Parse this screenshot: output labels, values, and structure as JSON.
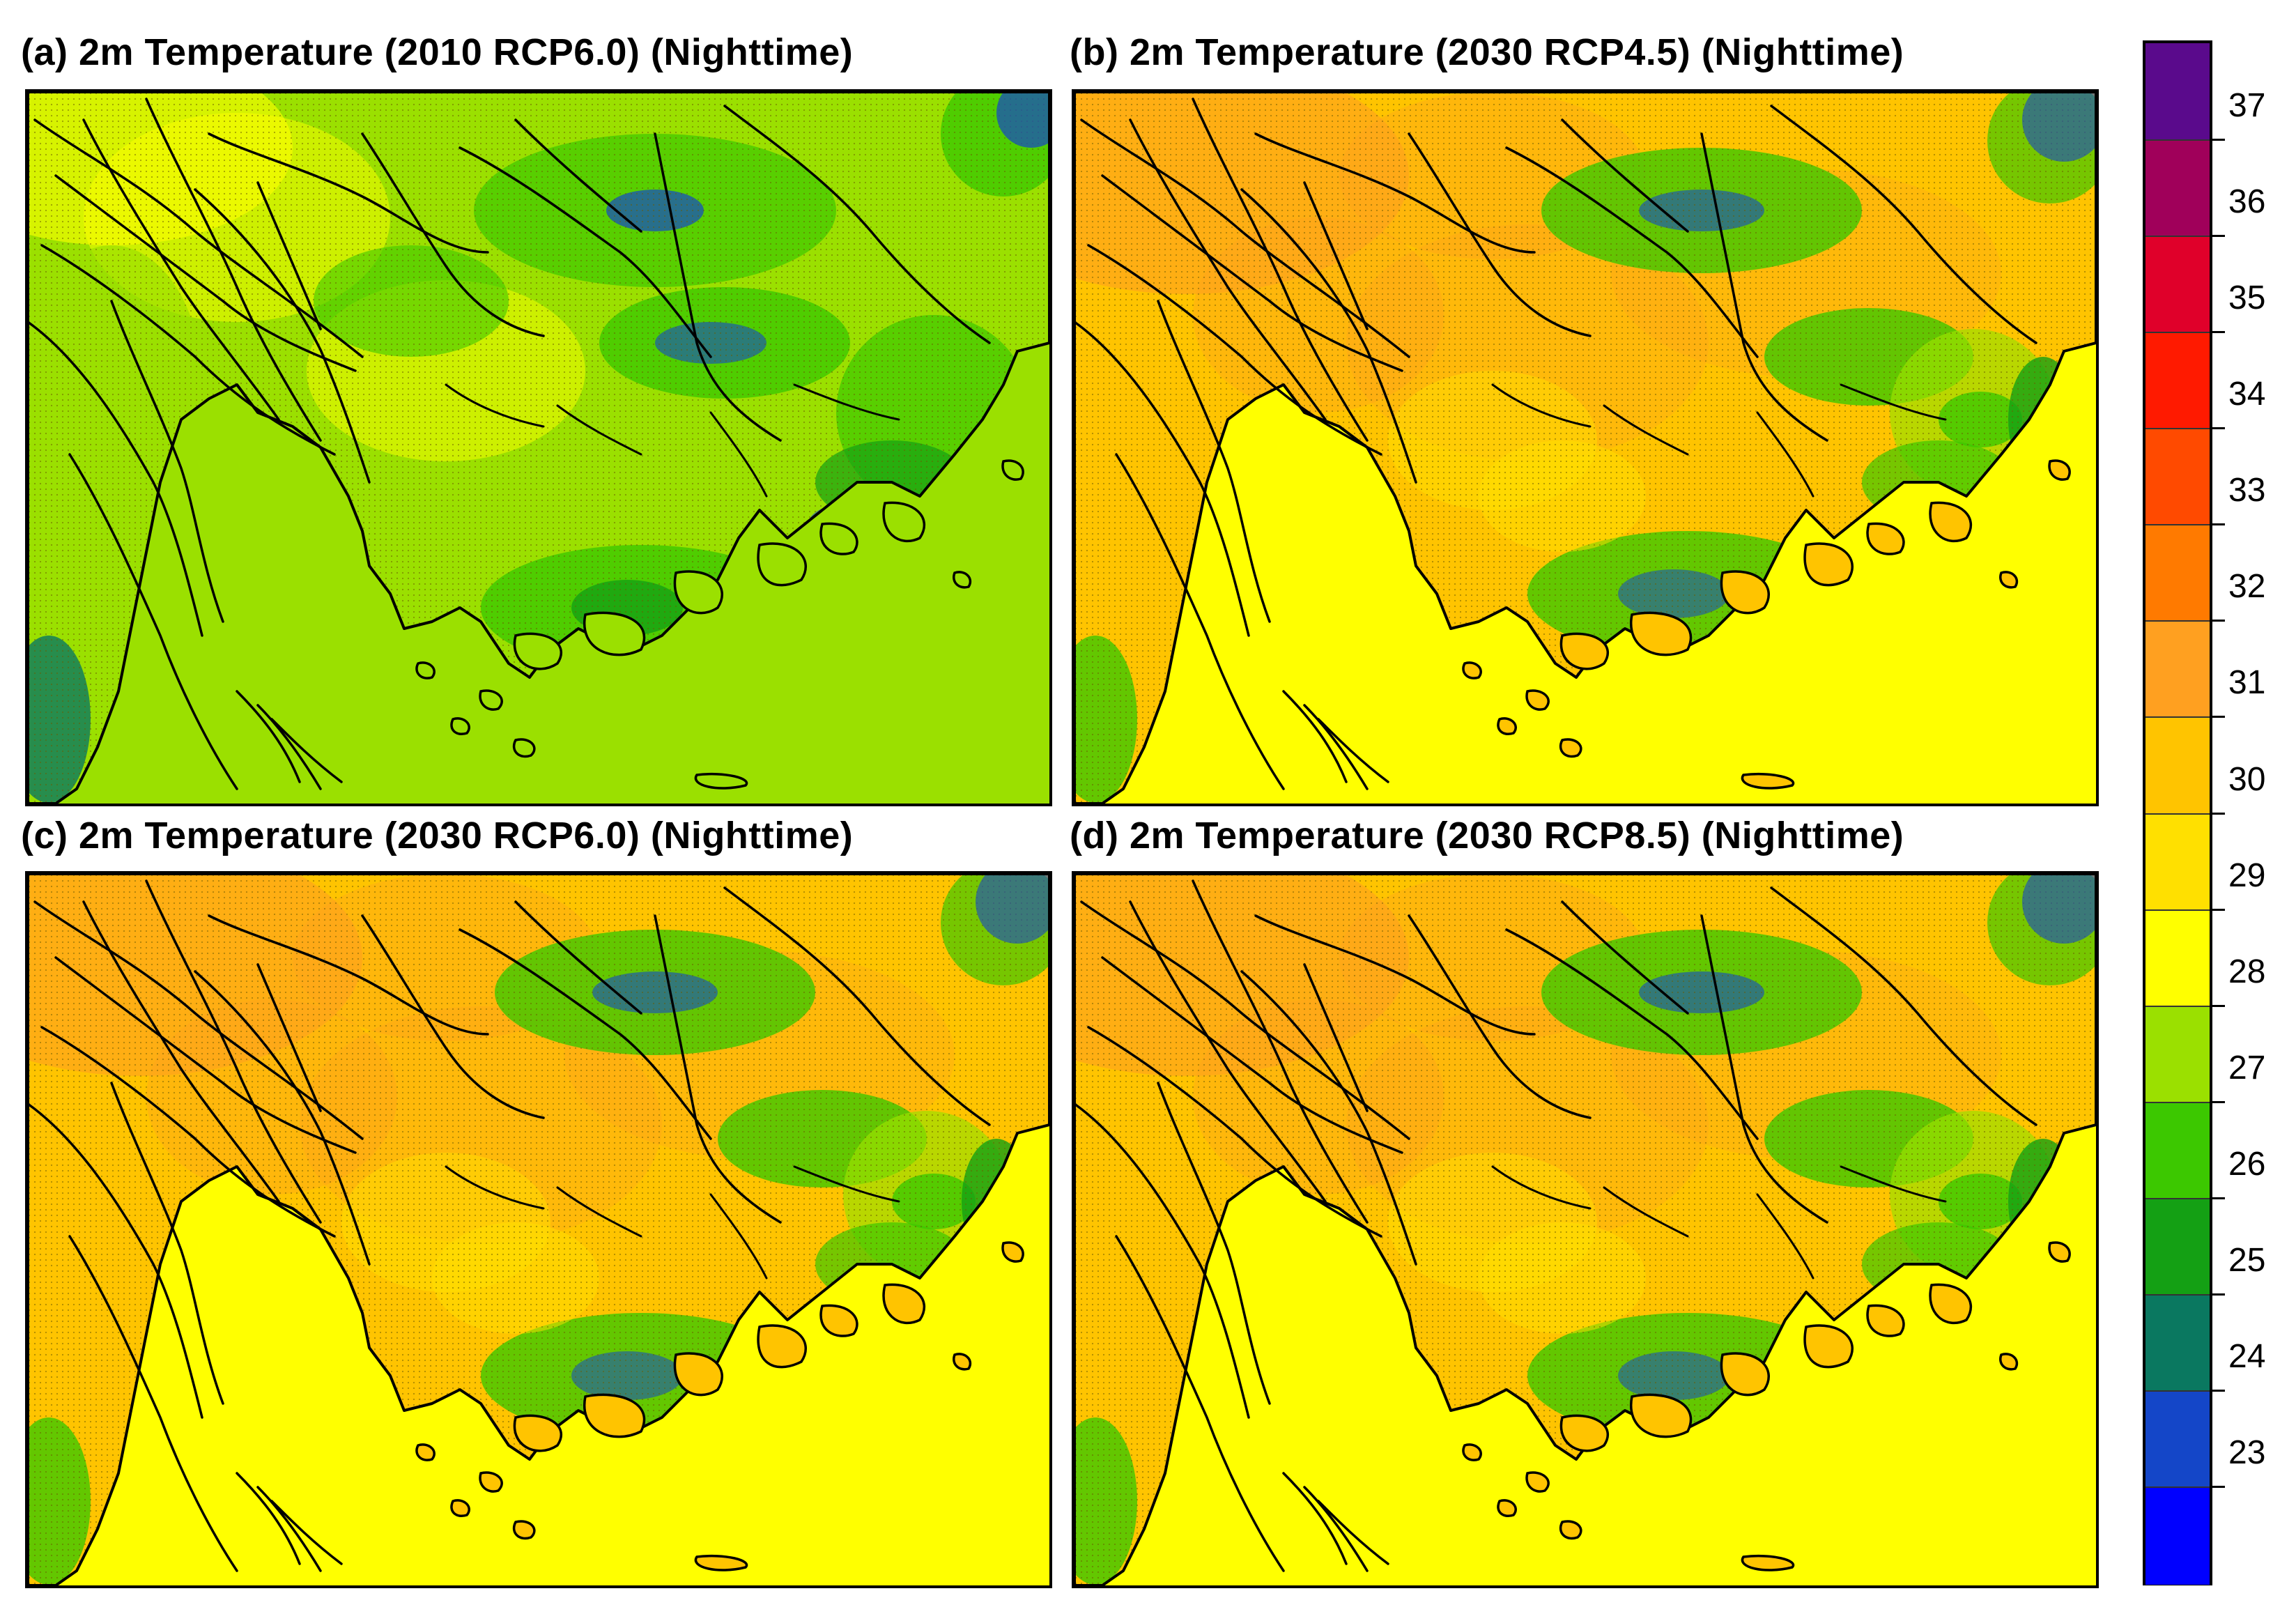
{
  "panels": [
    {
      "id": "a",
      "title": "(a)  2m Temperature (2010 RCP6.0) (Nighttime)"
    },
    {
      "id": "b",
      "title": "(b)  2m Temperature (2030 RCP4.5) (Nighttime)"
    },
    {
      "id": "c",
      "title": "(c)  2m Temperature (2030 RCP6.0) (Nighttime)"
    },
    {
      "id": "d",
      "title": "(d)  2m Temperature (2030 RCP8.5) (Nighttime)"
    }
  ],
  "colorbar": {
    "labels": [
      "37",
      "36",
      "35",
      "34",
      "33",
      "32",
      "31",
      "30",
      "29",
      "28",
      "27",
      "26",
      "25",
      "24",
      "23"
    ],
    "colors_top_to_bottom": [
      "#5a0a8c",
      "#a0005a",
      "#e0002a",
      "#ff1a00",
      "#ff4a00",
      "#ff7a00",
      "#ffa020",
      "#ffc400",
      "#ffe000",
      "#ffff00",
      "#9be000",
      "#3cc800",
      "#14a014",
      "#0a7860",
      "#1446c8",
      "#0000ff"
    ]
  },
  "chart_data": {
    "type": "heatmap",
    "legend_placement": "right",
    "dominant_level": {
      "a": 27,
      "b": 29,
      "c": 29,
      "d": 29
    },
    "color_levels": [
      23,
      24,
      25,
      26,
      27,
      28,
      29,
      30,
      31,
      32,
      33,
      34,
      35,
      36,
      37
    ]
  }
}
